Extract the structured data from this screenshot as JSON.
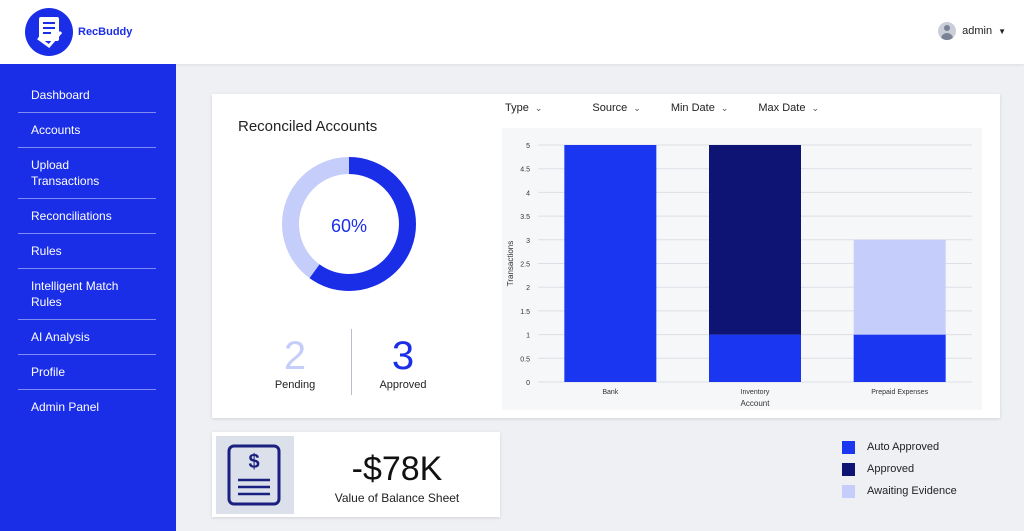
{
  "app": {
    "name": "RecBuddy"
  },
  "user": {
    "name": "admin"
  },
  "sidebar": {
    "items": [
      {
        "label": "Dashboard"
      },
      {
        "label": "Accounts"
      },
      {
        "label": "Upload\nTransactions"
      },
      {
        "label": "Reconciliations"
      },
      {
        "label": "Rules"
      },
      {
        "label": "Intelligent Match\nRules"
      },
      {
        "label": "AI Analysis"
      },
      {
        "label": "Profile"
      },
      {
        "label": "Admin Panel"
      }
    ]
  },
  "reconciled": {
    "title": "Reconciled Accounts",
    "percent_label": "60%",
    "percent": 60,
    "pending_value": "2",
    "pending_label": "Pending",
    "approved_value": "3",
    "approved_label": "Approved"
  },
  "filters": [
    {
      "label": "Type"
    },
    {
      "label": "Source"
    },
    {
      "label": "Min Date"
    },
    {
      "label": "Max Date"
    }
  ],
  "colors": {
    "brand": "#1a2ee8",
    "auto_approved": "#1a36f0",
    "approved": "#0d1473",
    "awaiting": "#c5cdfa"
  },
  "balance": {
    "value": "-$78K",
    "label": "Value of Balance Sheet"
  },
  "chart_data": {
    "type": "bar",
    "stacked": true,
    "categories": [
      "Bank",
      "Inventory",
      "Prepaid Expenses"
    ],
    "series": [
      {
        "name": "Auto Approved",
        "values": [
          5,
          1,
          1
        ]
      },
      {
        "name": "Approved",
        "values": [
          0,
          4,
          0
        ]
      },
      {
        "name": "Awaiting Evidence",
        "values": [
          0,
          0,
          2
        ]
      }
    ],
    "xlabel": "Account",
    "ylabel": "Transactions",
    "ylim": [
      0,
      5
    ],
    "yticks": [
      "0",
      "0.5",
      "1",
      "1.5",
      "2",
      "2.5",
      "3",
      "3.5",
      "4",
      "4.5",
      "5"
    ],
    "grid": true,
    "legend_position": "bottom-right"
  }
}
